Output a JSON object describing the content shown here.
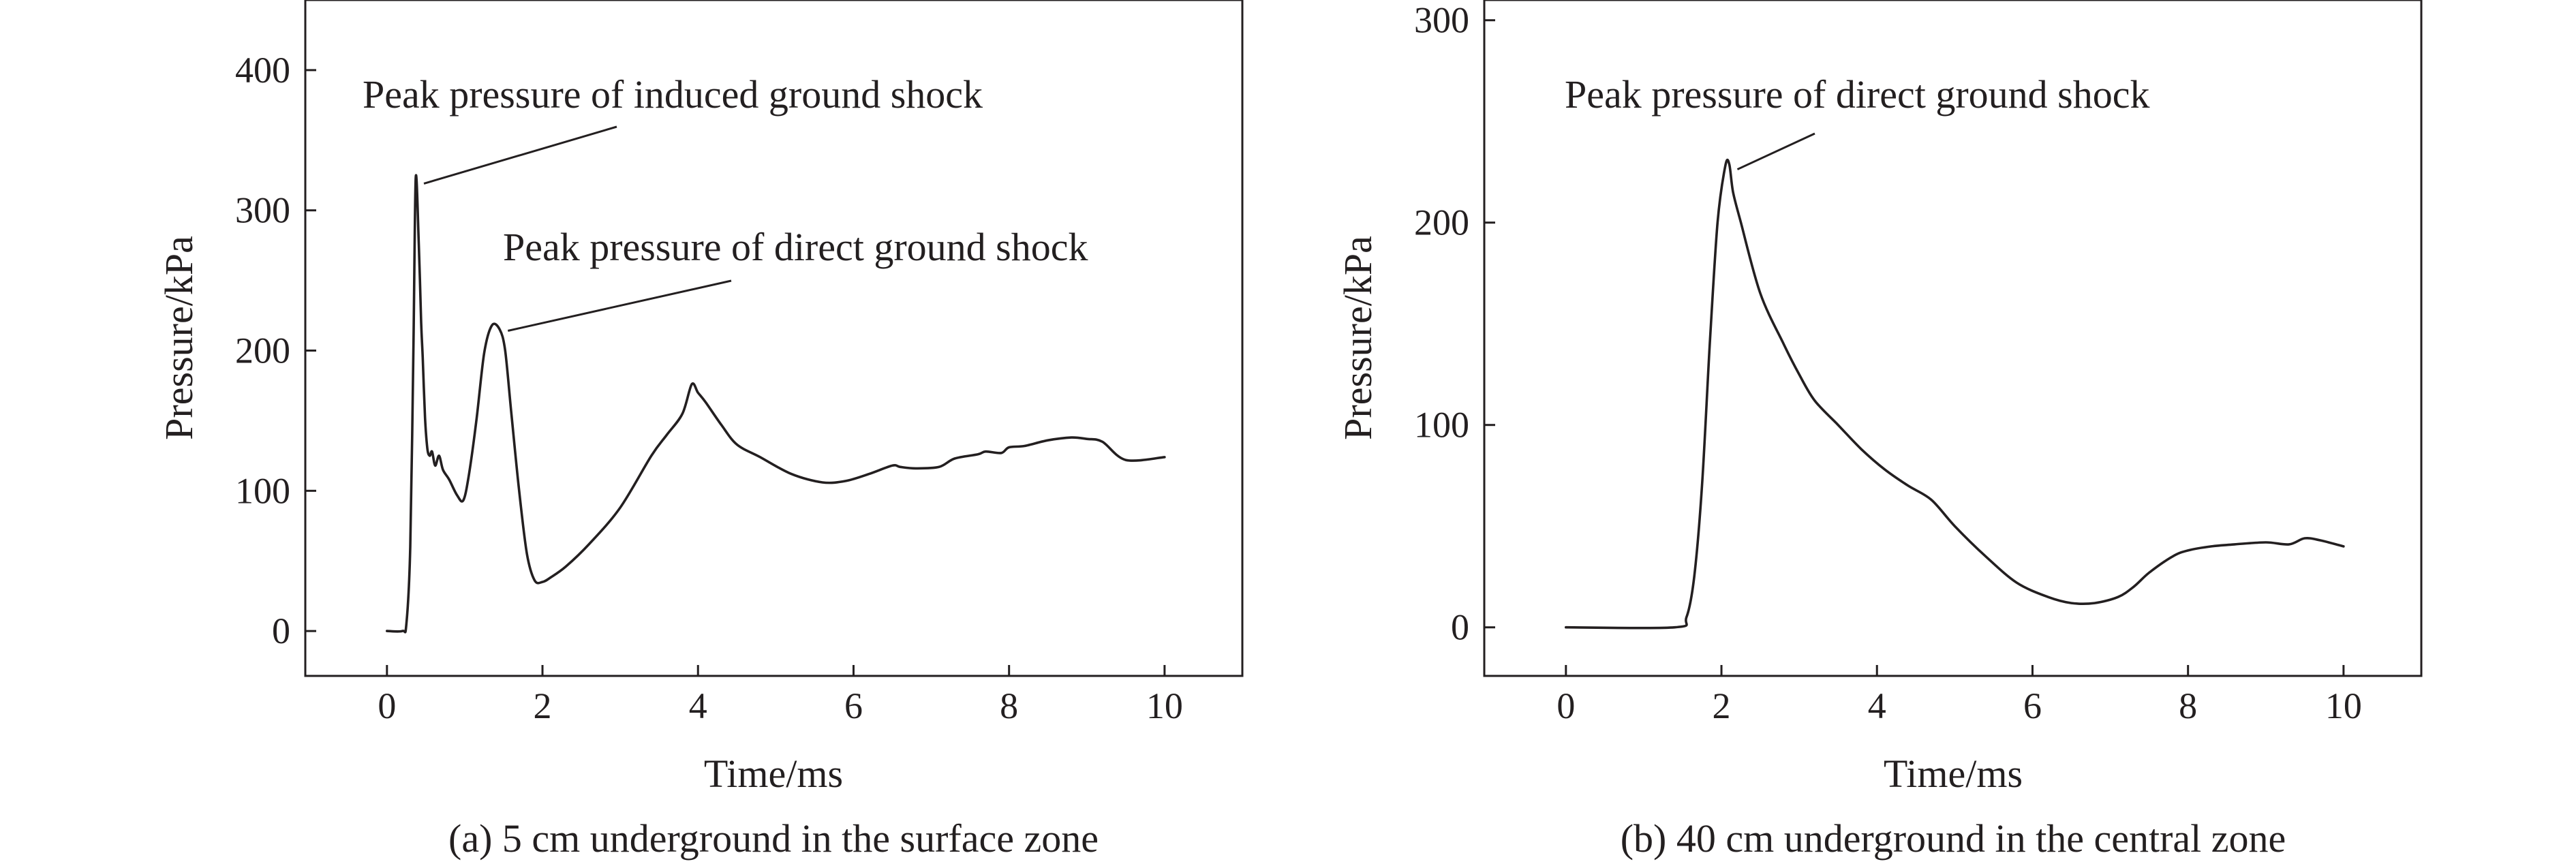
{
  "chart_data": [
    {
      "type": "line",
      "caption": "(a) 5 cm underground in the surface zone",
      "xlabel": "Time/ms",
      "ylabel": "Pressure/kPa",
      "xlim": [
        -1.05,
        11.0
      ],
      "ylim": [
        -32,
        450
      ],
      "xticks": [
        0,
        2,
        4,
        6,
        8,
        10
      ],
      "yticks": [
        0,
        100,
        200,
        300,
        400
      ],
      "grid": false,
      "series": [
        {
          "x": [
            0.0,
            0.2,
            0.25,
            0.3,
            0.34,
            0.37,
            0.41,
            0.44,
            0.46,
            0.49,
            0.52,
            0.55,
            0.58,
            0.62,
            0.67,
            0.72,
            0.8,
            0.9,
            0.98,
            1.05,
            1.15,
            1.25,
            1.35,
            1.45,
            1.52,
            1.6,
            1.7,
            1.8,
            1.9,
            2.0,
            2.1,
            2.3,
            2.6,
            3.0,
            3.4,
            3.6,
            3.8,
            3.92,
            4.0,
            4.1,
            4.3,
            4.5,
            4.8,
            5.2,
            5.6,
            5.9,
            6.2,
            6.5,
            6.6,
            6.8,
            7.1,
            7.3,
            7.6,
            7.7,
            7.9,
            8.0,
            8.2,
            8.5,
            8.8,
            9.0,
            9.2,
            9.5,
            10.0
          ],
          "y": [
            0,
            0,
            5,
            60,
            200,
            323,
            275,
            220,
            195,
            152,
            130,
            125,
            128,
            118,
            125,
            115,
            108,
            97,
            93,
            110,
            150,
            198,
            218,
            215,
            200,
            155,
            100,
            55,
            36,
            35,
            38,
            46,
            62,
            88,
            125,
            140,
            155,
            176,
            170,
            163,
            147,
            133,
            124,
            112,
            106,
            107,
            112,
            118,
            117,
            116,
            117,
            123,
            126,
            128,
            127,
            131,
            132,
            136,
            138,
            137,
            135,
            122,
            124
          ]
        }
      ],
      "annotations": [
        {
          "text": "Peak pressure of induced ground shock",
          "x": 0.37,
          "y": 323
        },
        {
          "text": "Peak pressure of direct ground shock",
          "x": 1.45,
          "y": 218
        }
      ]
    },
    {
      "type": "line",
      "caption": "(b) 40 cm underground in the central zone",
      "xlabel": "Time/ms",
      "ylabel": "Pressure/kPa",
      "xlim": [
        -1.05,
        11.0
      ],
      "ylim": [
        -24,
        310
      ],
      "xticks": [
        0,
        2,
        4,
        6,
        8,
        10
      ],
      "yticks": [
        0,
        100,
        200,
        300
      ],
      "grid": false,
      "series": [
        {
          "x": [
            0.0,
            1.4,
            1.55,
            1.65,
            1.75,
            1.85,
            1.95,
            2.05,
            2.1,
            2.15,
            2.25,
            2.5,
            2.8,
            3.0,
            3.2,
            3.5,
            3.8,
            4.1,
            4.4,
            4.7,
            5.0,
            5.4,
            5.8,
            6.2,
            6.5,
            6.8,
            7.1,
            7.3,
            7.5,
            7.8,
            8.0,
            8.3,
            8.6,
            9.0,
            9.3,
            9.5,
            9.7,
            10.0
          ],
          "y": [
            0,
            0,
            5,
            25,
            70,
            140,
            200,
            228,
            229,
            215,
            200,
            165,
            140,
            125,
            112,
            100,
            88,
            78,
            70,
            63,
            50,
            35,
            22,
            15,
            12,
            12,
            15,
            20,
            27,
            35,
            38,
            40,
            41,
            42,
            41,
            44,
            43,
            40
          ]
        }
      ],
      "annotations": [
        {
          "text": "Peak pressure of direct ground shock",
          "x": 2.1,
          "y": 229
        }
      ]
    }
  ]
}
